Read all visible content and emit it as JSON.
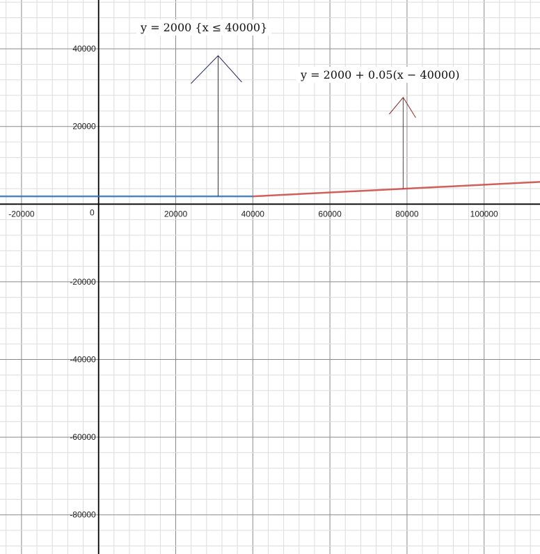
{
  "chart_data": {
    "type": "line",
    "xlim": [
      -25578,
      114495
    ],
    "ylim": [
      -90090,
      52563
    ],
    "grid": true,
    "major_step": 20000,
    "minor_step": 4000,
    "x_ticks": [
      -20000,
      20000,
      40000,
      60000,
      80000,
      100000
    ],
    "y_ticks": [
      40000,
      20000,
      -20000,
      -40000,
      -60000,
      -80000
    ],
    "origin_label": "0",
    "series": [
      {
        "expression": "y = 2000 {x ≤ 40000}",
        "color": "#2d70b3",
        "x": [
          -25578,
          40000
        ],
        "y": [
          2000,
          2000
        ]
      },
      {
        "expression": "y = 2000 + 0.05(x − 40000)",
        "color": "#c74440",
        "x": [
          40000,
          114495
        ],
        "y": [
          2000,
          5724.75
        ]
      }
    ],
    "annotations": [
      {
        "label": "y = 2000 {x ≤ 40000}",
        "arrow_color": "#2a2f5a",
        "points_to_x": 31000
      },
      {
        "label": "y = 2000 + 0.05(x − 40000)",
        "arrow_color": "#8a2a2a",
        "points_to_x": 79000
      }
    ]
  }
}
